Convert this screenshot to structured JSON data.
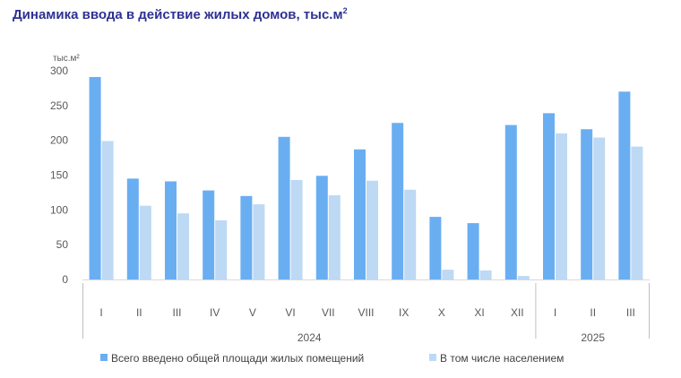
{
  "chart_title": {
    "text": "Динамика ввода в действие жилых домов, тыс.м",
    "superscript": "2"
  },
  "chart_data": {
    "type": "bar",
    "title": "Динамика ввода в действие жилых домов, тыс.м²",
    "ylabel": "тыс.м²",
    "ylim": [
      0,
      300
    ],
    "yticks": [
      0,
      50,
      100,
      150,
      200,
      250,
      300
    ],
    "categories": [
      "I",
      "II",
      "III",
      "IV",
      "V",
      "VI",
      "VII",
      "VIII",
      "IX",
      "X",
      "XI",
      "XII",
      "I",
      "II",
      "III"
    ],
    "groups": [
      {
        "label": "2024",
        "count": 12
      },
      {
        "label": "2025",
        "count": 3
      }
    ],
    "series": [
      {
        "name": "Всего введено общей площади жилых помещений",
        "color": "#6aaef2",
        "values": [
          291,
          145,
          141,
          128,
          120,
          205,
          149,
          187,
          225,
          90,
          81,
          222,
          239,
          216,
          270
        ]
      },
      {
        "name": "В том числе населением",
        "color": "#bdd9f4",
        "values": [
          199,
          106,
          95,
          85,
          108,
          143,
          121,
          142,
          129,
          14,
          13,
          5,
          210,
          204,
          191
        ]
      }
    ],
    "legend_position": "bottom",
    "grid": false
  }
}
